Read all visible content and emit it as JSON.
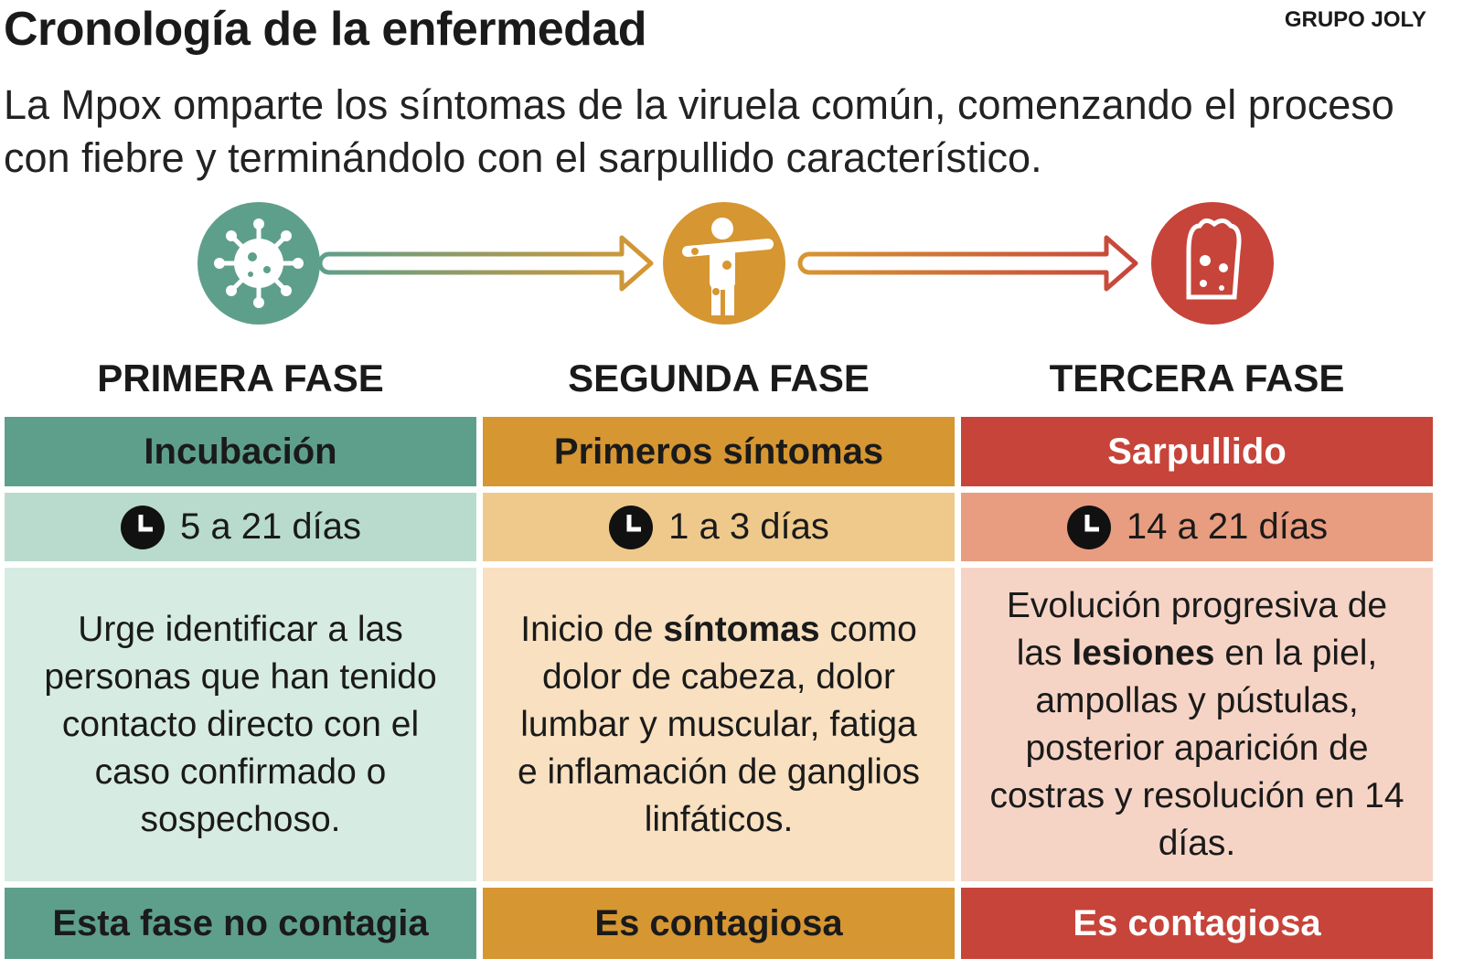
{
  "header": {
    "title": "Cronología de la enfermedad",
    "source": "GRUPO JOLY",
    "subtitle": "La Mpox omparte los síntomas de la viruela común, comenzando el proceso con fiebre y terminándolo con el sarpullido característico."
  },
  "phases": [
    {
      "label": "PRIMERA FASE",
      "name": "Incubación",
      "duration": "5 a 21 días",
      "description": [
        {
          "text": "Urge identificar a las personas que han tenido contacto directo con el caso confirmado o sospechoso."
        }
      ],
      "contagion": "Esta fase no contagia"
    },
    {
      "label": "SEGUNDA FASE",
      "name": "Primeros síntomas",
      "duration": "1 a 3 días",
      "description": [
        {
          "text": "Inicio de "
        },
        {
          "text": "síntomas",
          "bold": true
        },
        {
          "text": " como dolor de cabeza, dolor lumbar y muscular, fatiga e inflamación de ganglios linfáticos."
        }
      ],
      "contagion": "Es contagiosa"
    },
    {
      "label": "TERCERA FASE",
      "name": "Sarpullido",
      "duration": "14 a 21 días",
      "description": [
        {
          "text": "Evolución progresiva de las "
        },
        {
          "text": "lesiones",
          "bold": true
        },
        {
          "text": " en la piel, ampollas y pústulas, posterior aparición de costras y resolución en 14 días."
        }
      ],
      "contagion": "Es contagiosa"
    }
  ]
}
